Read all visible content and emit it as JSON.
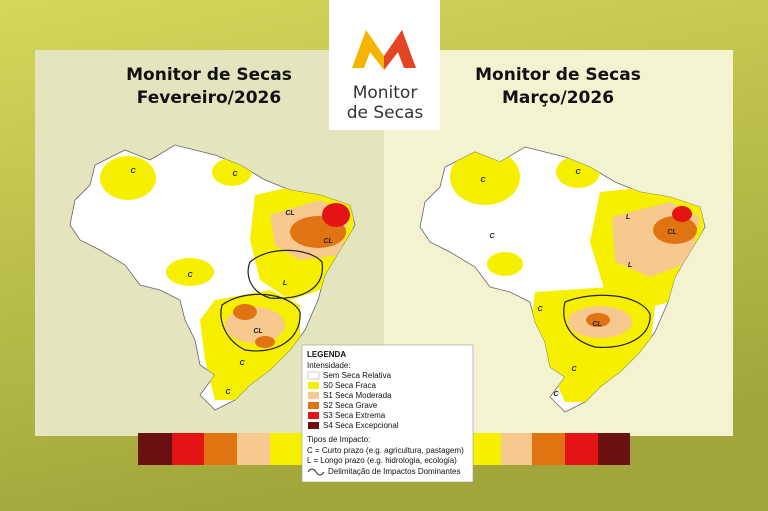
{
  "logo": {
    "line1": "Monitor",
    "line2": "de Secas"
  },
  "maps": [
    {
      "title": "Monitor de Secas",
      "subtitle": "Fevereiro/2026",
      "labels": [
        "C",
        "C",
        "CL",
        "CL",
        "C",
        "L",
        "CL",
        "C",
        "C"
      ]
    },
    {
      "title": "Monitor de Secas",
      "subtitle": "Março/2026",
      "labels": [
        "C",
        "C",
        "L",
        "CL",
        "L",
        "C",
        "C",
        "CL",
        "C",
        "C"
      ]
    }
  ],
  "legend": {
    "title": "LEGENDA",
    "intensity_title": "Intensidade:",
    "items": [
      "Sem Seca Relativa",
      "S0 Seca Fraca",
      "S1 Seca Moderada",
      "S2 Seca Grave",
      "S3 Seca Extrema",
      "S4 Seca Excepcional"
    ],
    "impact_title": "Tipos de Impacto:",
    "impact_items": [
      "C = Curto prazo (e.g. agricultura, pastagem)",
      "L = Longo prazo (e.g. hidrologia, ecologia)"
    ],
    "boundary": "Delimitação de Impactos Dominantes"
  }
}
